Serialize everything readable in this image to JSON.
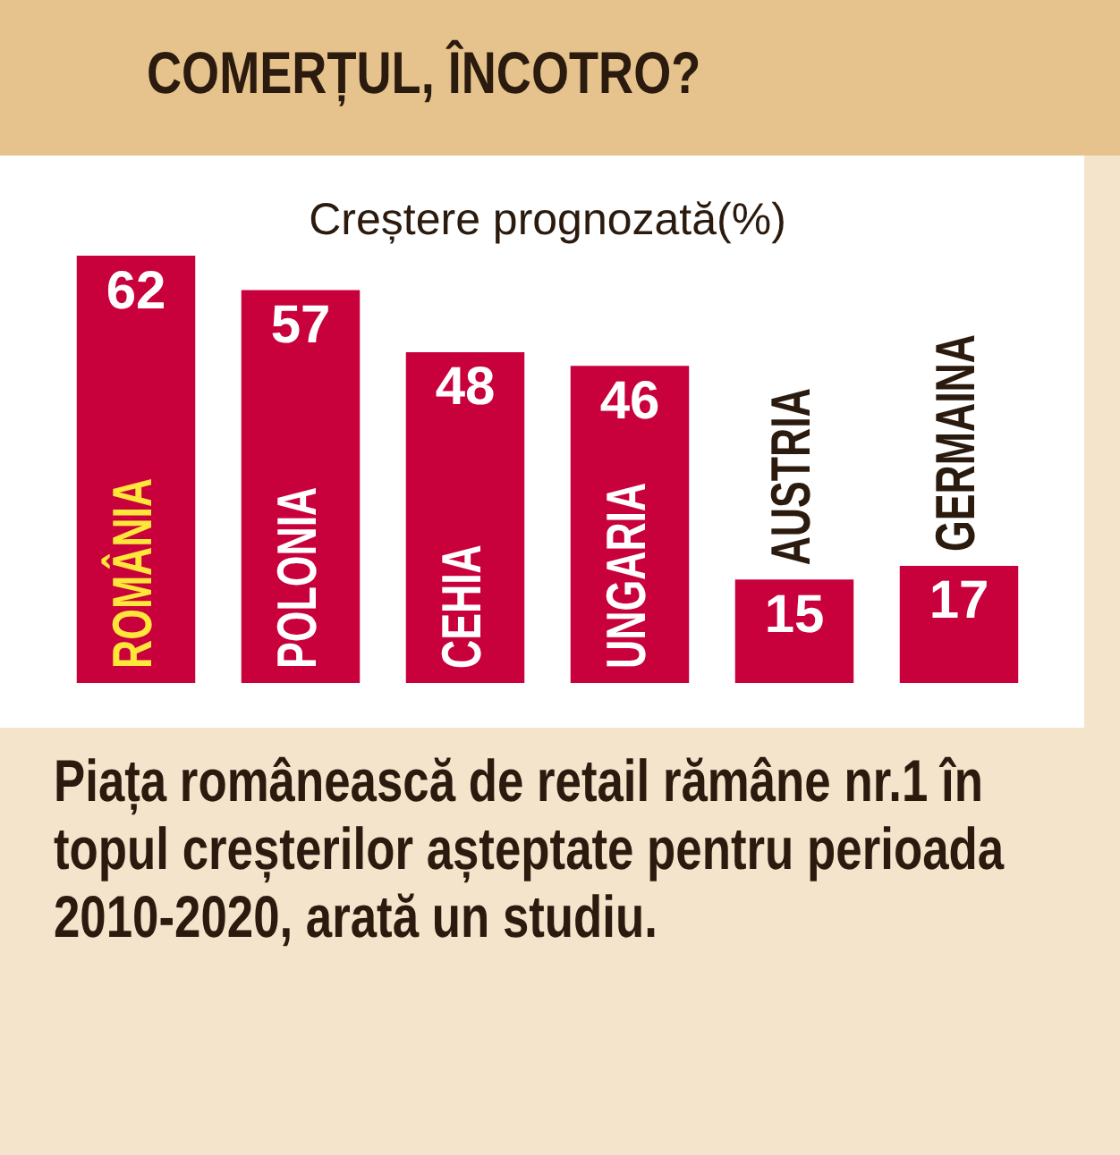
{
  "chart_data": {
    "type": "bar",
    "title": "COMERȚUL, ÎNCOTRO?",
    "subtitle": "Creștere prognozată(%)",
    "categories": [
      "ROMÂNIA",
      "POLONIA",
      "CEHIA",
      "UNGARIA",
      "AUSTRIA",
      "GERMAINA"
    ],
    "values": [
      62,
      57,
      48,
      46,
      15,
      17
    ],
    "color": "#c8003c",
    "data_labels": true,
    "tick_labels": false,
    "annotations": [
      "Piața românească de retail rămâne nr.1 în topul creșterilor așteptate pentru perioada 2010-2020, arată un studiu."
    ]
  }
}
